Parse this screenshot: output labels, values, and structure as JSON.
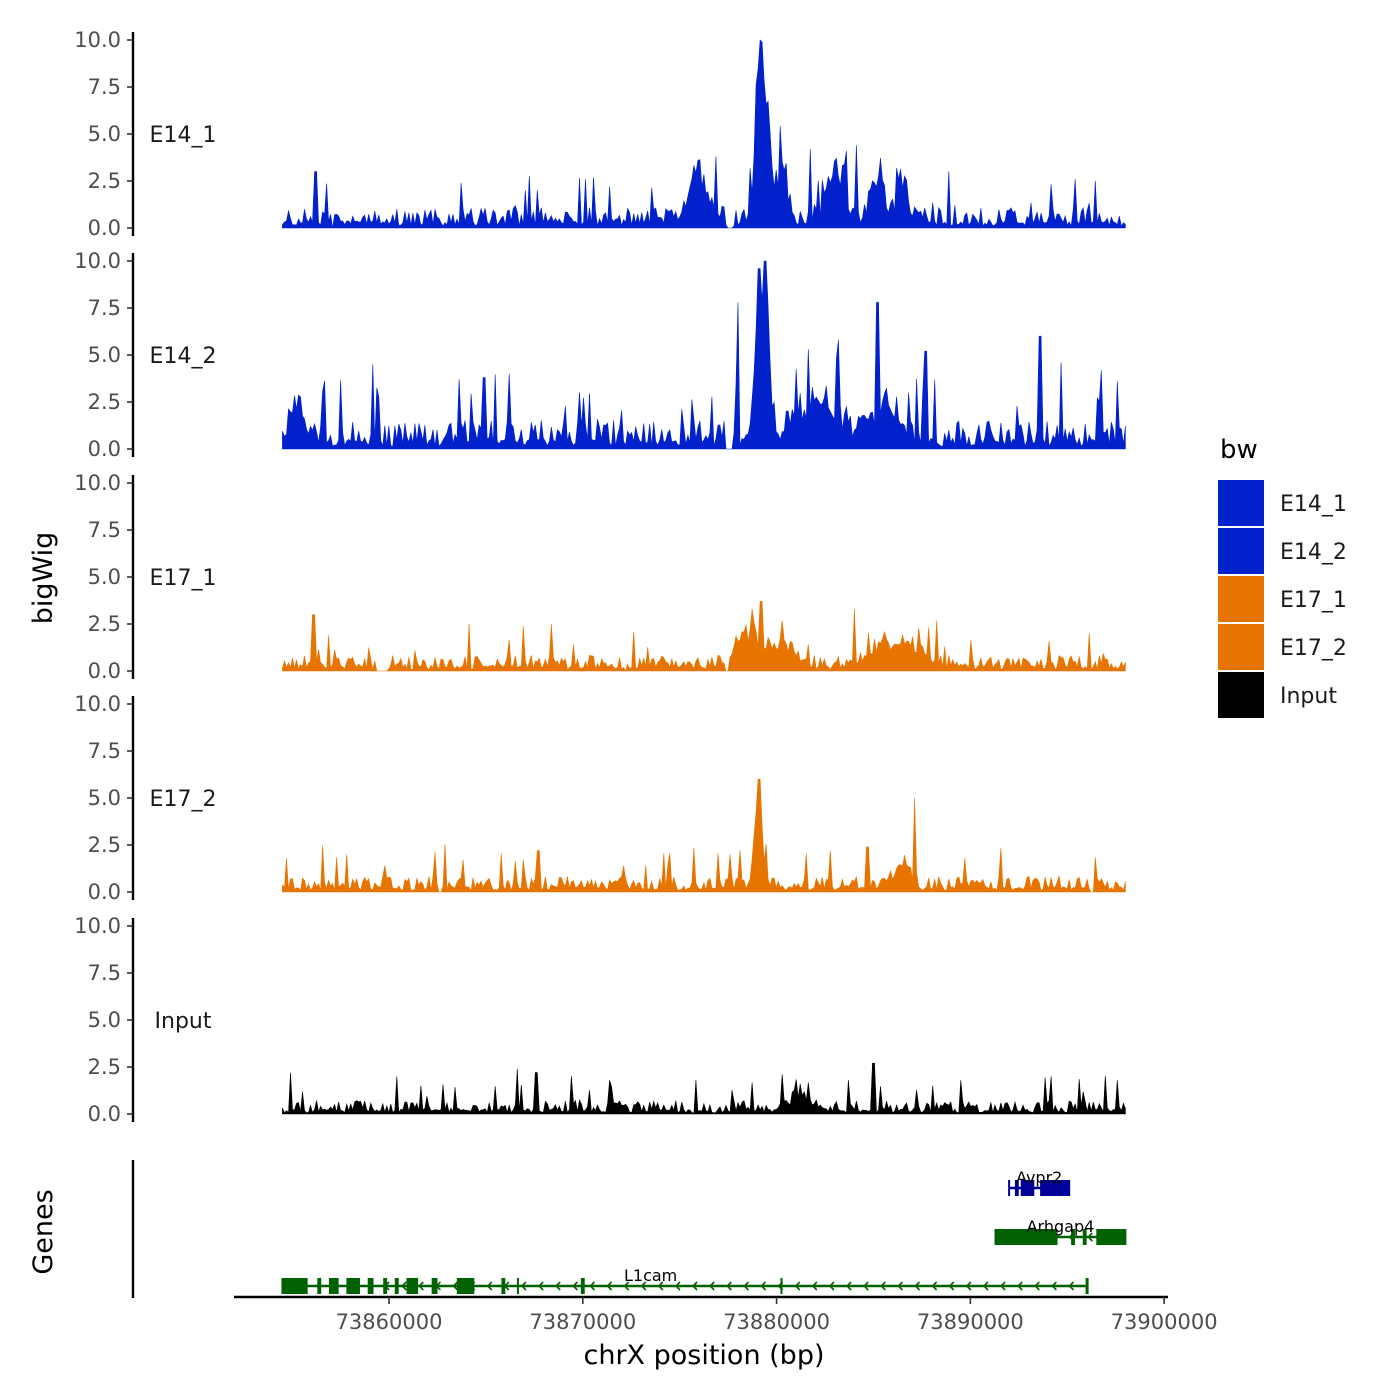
{
  "chart_data": {
    "type": "area",
    "title": "",
    "ylabel": "bigWig",
    "genes_label": "Genes",
    "xlabel": "chrX position (bp)",
    "xlim": [
      73852000,
      73900200
    ],
    "data_xrange": [
      73854500,
      73898000
    ],
    "ylim": [
      0,
      10
    ],
    "yticks": [
      "0.0",
      "2.5",
      "5.0",
      "7.5",
      "10.0"
    ],
    "xticks": [
      {
        "value": 73860000,
        "label": "73860000"
      },
      {
        "value": 73870000,
        "label": "73870000"
      },
      {
        "value": 73880000,
        "label": "73880000"
      },
      {
        "value": 73890000,
        "label": "73890000"
      },
      {
        "value": 73900000,
        "label": "73900000"
      }
    ],
    "legend": {
      "title": "bw",
      "position": "right",
      "items": [
        {
          "label": "E14_1",
          "color": "#0021CC"
        },
        {
          "label": "E14_2",
          "color": "#0021CC"
        },
        {
          "label": "E17_1",
          "color": "#E87400"
        },
        {
          "label": "E17_2",
          "color": "#E87400"
        },
        {
          "label": "Input",
          "color": "#000000"
        }
      ]
    },
    "series": [
      {
        "name": "E14_1",
        "color": "#0021CC",
        "seed": 11,
        "base": 0.9,
        "jitter": 1.6,
        "gaps": [
          [
            73857000,
            73857150
          ],
          [
            73877400,
            73877700
          ]
        ],
        "peaks": [
          [
            73876000,
            2.8,
            700
          ],
          [
            73879050,
            8.4,
            250
          ],
          [
            73879450,
            6.2,
            300
          ],
          [
            73880300,
            3.0,
            400
          ],
          [
            73883000,
            3.0,
            600
          ],
          [
            73885200,
            2.6,
            500
          ],
          [
            73886500,
            2.5,
            400
          ]
        ],
        "spikes": [
          [
            73856200,
            3.0
          ],
          [
            73863700,
            2.4
          ],
          [
            73867000,
            2.0
          ],
          [
            73871400,
            2.2
          ],
          [
            73876900,
            3.8
          ],
          [
            73881700,
            4.2
          ],
          [
            73884100,
            4.4
          ],
          [
            73889200,
            1.2
          ]
        ]
      },
      {
        "name": "E14_2",
        "color": "#0021CC",
        "seed": 23,
        "base": 1.3,
        "jitter": 2.0,
        "gaps": [
          [
            73877300,
            73877700
          ]
        ],
        "peaks": [
          [
            73855200,
            2.0,
            500
          ],
          [
            73879050,
            6.0,
            350
          ],
          [
            73879450,
            6.8,
            300
          ],
          [
            73882000,
            2.0,
            1500
          ],
          [
            73885500,
            2.0,
            1000
          ]
        ],
        "spikes": [
          [
            73859200,
            4.5
          ],
          [
            73864900,
            3.8
          ],
          [
            73866200,
            4.0
          ],
          [
            73878000,
            7.8
          ],
          [
            73879100,
            9.6
          ],
          [
            73879500,
            10.0
          ],
          [
            73881600,
            5.3
          ],
          [
            73883200,
            5.8
          ],
          [
            73885200,
            7.8
          ],
          [
            73887700,
            5.2
          ],
          [
            73893600,
            6.0
          ],
          [
            73894700,
            4.6
          ],
          [
            73897600,
            3.6
          ]
        ]
      },
      {
        "name": "E17_1",
        "color": "#E87400",
        "seed": 37,
        "base": 0.7,
        "jitter": 1.0,
        "gaps": [
          [
            73859300,
            73859900
          ],
          [
            73872150,
            73872300
          ],
          [
            73877300,
            73877500
          ]
        ],
        "peaks": [
          [
            73878700,
            1.8,
            1000
          ],
          [
            73880500,
            1.0,
            800
          ],
          [
            73885500,
            1.0,
            1200
          ],
          [
            73887000,
            1.0,
            1000
          ]
        ],
        "spikes": [
          [
            73856100,
            3.0
          ],
          [
            73864100,
            2.5
          ],
          [
            73866900,
            2.4
          ],
          [
            73868400,
            2.5
          ],
          [
            73878700,
            3.3
          ],
          [
            73879200,
            3.7
          ],
          [
            73884000,
            3.3
          ],
          [
            73887300,
            2.3
          ]
        ]
      },
      {
        "name": "E17_2",
        "color": "#E87400",
        "seed": 51,
        "base": 0.7,
        "jitter": 1.2,
        "gaps": [
          [
            73862500,
            73862700
          ],
          [
            73896200,
            73896400
          ]
        ],
        "peaks": [
          [
            73879050,
            4.6,
            300
          ],
          [
            73886500,
            1.6,
            500
          ]
        ],
        "spikes": [
          [
            73854700,
            1.8
          ],
          [
            73857800,
            2.0
          ],
          [
            73867700,
            2.2
          ],
          [
            73877600,
            2.0
          ],
          [
            73879100,
            6.0
          ],
          [
            73882800,
            2.2
          ],
          [
            73884700,
            2.4
          ],
          [
            73887100,
            5.0
          ],
          [
            73889700,
            1.8
          ]
        ]
      },
      {
        "name": "Input",
        "color": "#000000",
        "seed": 67,
        "base": 0.6,
        "jitter": 0.9,
        "gaps": [],
        "peaks": [
          [
            73881200,
            0.8,
            800
          ]
        ],
        "spikes": [
          [
            73854900,
            2.2
          ],
          [
            73860400,
            2.0
          ],
          [
            73866600,
            2.4
          ],
          [
            73867600,
            2.2
          ],
          [
            73871400,
            1.8
          ],
          [
            73875800,
            1.8
          ],
          [
            73881200,
            1.6
          ],
          [
            73885000,
            2.7
          ],
          [
            73889500,
            1.8
          ],
          [
            73894200,
            2.0
          ],
          [
            73897600,
            1.8
          ]
        ]
      }
    ],
    "genes": [
      {
        "name": "Avpr2",
        "row": 0,
        "color": "#000099",
        "start": 73892000,
        "end": 73895100,
        "arrow": ">",
        "exons": [
          [
            73892300,
            73892500
          ],
          [
            73892600,
            73893300
          ],
          [
            73893600,
            73895100
          ]
        ]
      },
      {
        "name": "Arhgap4",
        "row": 1,
        "color": "#006100",
        "start": 73891300,
        "end": 73898000,
        "arrow": "<",
        "exons": [
          [
            73891300,
            73894500
          ],
          [
            73895200,
            73895400
          ],
          [
            73895800,
            73896000
          ],
          [
            73896500,
            73898000
          ]
        ]
      },
      {
        "name": "L1cam",
        "row": 2,
        "color": "#006100",
        "start": 73854500,
        "end": 73896000,
        "arrow": "<",
        "exons": [
          [
            73854500,
            73855800
          ],
          [
            73856300,
            73856500
          ],
          [
            73856900,
            73857400
          ],
          [
            73857800,
            73858500
          ],
          [
            73858900,
            73859200
          ],
          [
            73859700,
            73859900
          ],
          [
            73860300,
            73860500
          ],
          [
            73860900,
            73861500
          ],
          [
            73862200,
            73862500
          ],
          [
            73863500,
            73864400
          ],
          [
            73865800,
            73866000
          ],
          [
            73866600,
            73866700
          ],
          [
            73869900,
            73870100
          ],
          [
            73880200,
            73880300
          ],
          [
            73896000,
            73896100
          ]
        ]
      }
    ]
  }
}
